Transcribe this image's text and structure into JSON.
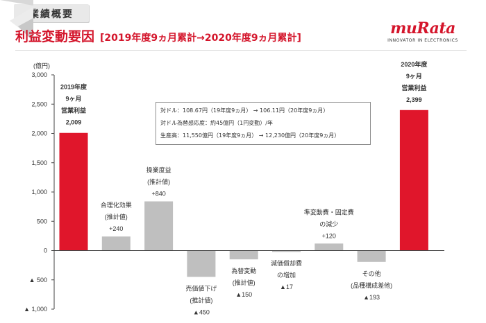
{
  "header": {
    "tag": "業績概要",
    "title": "利益変動要因",
    "subtitle": "[2019年度9ヵ月累計→2020年度9ヵ月累計]"
  },
  "logo": {
    "word": "muRata",
    "tagline": "INNOVATOR IN ELECTRONICS"
  },
  "info_box": {
    "line1": "対ドル：108.67円（19年度9ヵ月） → 106.11円（20年度9ヵ月）",
    "line2": "対ドル為替感応度：約45億円（1円変動）/年",
    "line3": "生産高：11,550億円（19年度9ヵ月） → 12,230億円（20年度9ヵ月）"
  },
  "chart_data": {
    "type": "bar",
    "subtype": "waterfall",
    "unit_label": "(億円)",
    "ylim": [
      -1000,
      3000
    ],
    "yticks": [
      -1000,
      -500,
      0,
      500,
      1000,
      1500,
      2000,
      2500,
      3000
    ],
    "ytick_labels": [
      "▲ 1,000",
      "▲ 500",
      "0",
      "500",
      "1,000",
      "1,500",
      "2,000",
      "2,500",
      "3,000"
    ],
    "grid": false,
    "bars": [
      {
        "value": 2009,
        "kind": "total",
        "label_lines": [
          "2019年度",
          "9ヶ月",
          "営業利益",
          "2,009"
        ]
      },
      {
        "value": 240,
        "kind": "change",
        "label_lines": [
          "合理化効果",
          "(推計値)",
          "+240"
        ]
      },
      {
        "value": 840,
        "kind": "change",
        "label_lines": [
          "操業度益",
          "(推計値)",
          "+840"
        ]
      },
      {
        "value": -450,
        "kind": "change",
        "label_lines": [
          "売価値下げ",
          "(推計値)",
          "▲450"
        ]
      },
      {
        "value": -150,
        "kind": "change",
        "label_lines": [
          "為替変動",
          "(推計値)",
          "▲150"
        ]
      },
      {
        "value": -17,
        "kind": "change",
        "label_lines": [
          "減価償却費",
          "の増加",
          "▲17"
        ]
      },
      {
        "value": 120,
        "kind": "change",
        "label_lines": [
          "準変動費・固定費",
          "の減少",
          "+120"
        ]
      },
      {
        "value": -193,
        "kind": "change",
        "label_lines": [
          "その他",
          "(品種構成差他)",
          "▲193"
        ]
      },
      {
        "value": 2399,
        "kind": "total",
        "label_lines": [
          "2020年度",
          "9ヶ月",
          "営業利益",
          "2,399"
        ]
      }
    ],
    "colors": {
      "total": "#e0162b",
      "change": "#bfbfbf",
      "axis": "#444444",
      "text": "#333333"
    }
  }
}
